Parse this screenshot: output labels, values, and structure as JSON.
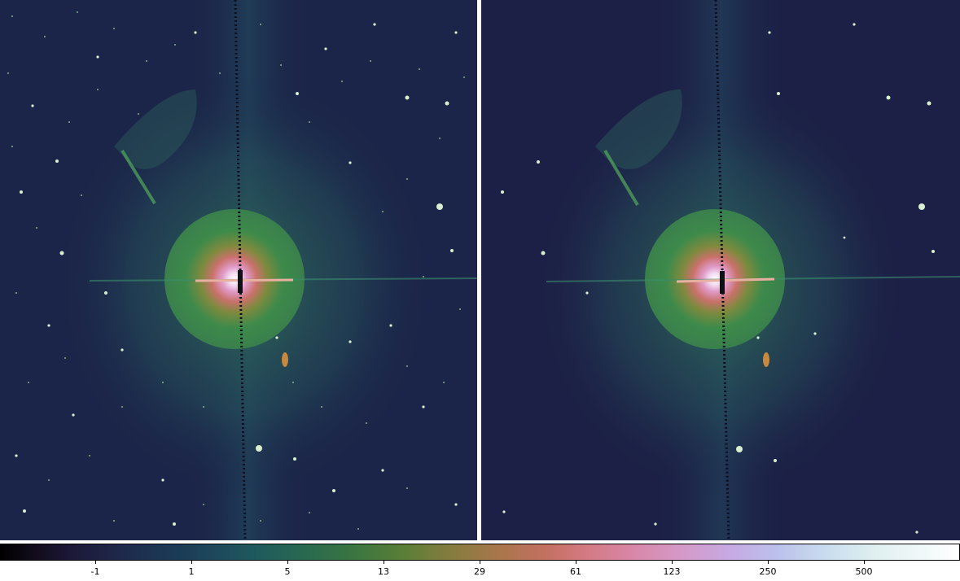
{
  "image": {
    "panels": [
      {
        "name": "left-panel",
        "description_visible": "star field with bright central star and nebula"
      },
      {
        "name": "right-panel",
        "description_visible": "processed star field with bright central star and nebula"
      }
    ],
    "colors": {
      "background_left": "#1b2549",
      "background_right": "#1c2046",
      "halo_green": "#3f8a4b",
      "core_pink": "#d98bc7",
      "core_white": "#ffffff"
    }
  },
  "colorbar": {
    "ticks": [
      "-1",
      "1",
      "5",
      "13",
      "29",
      "61",
      "123",
      "250",
      "500"
    ]
  }
}
